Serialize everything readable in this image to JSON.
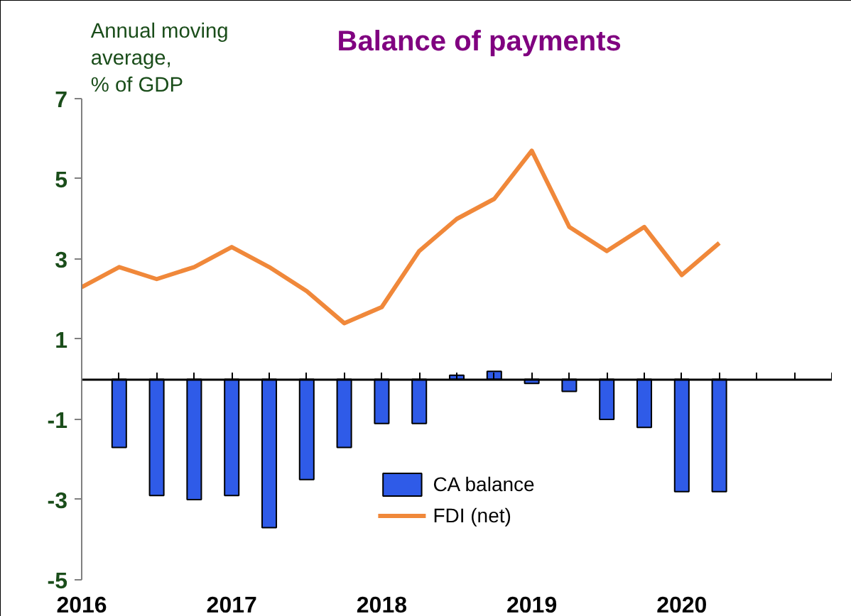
{
  "chart_data": {
    "type": "bar",
    "title": "Balance of payments",
    "ylabel": "Annual moving\naverage,\n% of GDP",
    "xlim": [
      2016,
      2021
    ],
    "xticks": [
      {
        "value": 2016,
        "label": "2016"
      },
      {
        "value": 2016.25,
        "label": null
      },
      {
        "value": 2016.5,
        "label": null
      },
      {
        "value": 2016.75,
        "label": null
      },
      {
        "value": 2017,
        "label": "2017"
      },
      {
        "value": 2017.25,
        "label": null
      },
      {
        "value": 2017.5,
        "label": null
      },
      {
        "value": 2017.75,
        "label": null
      },
      {
        "value": 2018,
        "label": "2018"
      },
      {
        "value": 2018.25,
        "label": null
      },
      {
        "value": 2018.5,
        "label": null
      },
      {
        "value": 2018.75,
        "label": null
      },
      {
        "value": 2019,
        "label": "2019"
      },
      {
        "value": 2019.25,
        "label": null
      },
      {
        "value": 2019.5,
        "label": null
      },
      {
        "value": 2019.75,
        "label": null
      },
      {
        "value": 2020,
        "label": "2020"
      },
      {
        "value": 2020.25,
        "label": null
      },
      {
        "value": 2020.5,
        "label": null
      },
      {
        "value": 2020.75,
        "label": null
      },
      {
        "value": 2021,
        "label": null
      }
    ],
    "ylim": [
      -5,
      7
    ],
    "yticks": [
      -5,
      -3,
      -1,
      1,
      3,
      5,
      7
    ],
    "series": [
      {
        "name": "CA balance",
        "color": "#2f5be8",
        "x": [
          2016.25,
          2016.5,
          2016.75,
          2017,
          2017.25,
          2017.5,
          2017.75,
          2018,
          2018.25,
          2018.5,
          2018.75,
          2019,
          2019.25,
          2019.5,
          2019.75,
          2020,
          2020.25
        ],
        "values": [
          -1.7,
          -2.9,
          -3.0,
          -2.9,
          -3.7,
          -2.5,
          -1.7,
          -1.1,
          -1.1,
          0.1,
          0.2,
          -0.1,
          -0.3,
          -1.0,
          -1.2,
          -2.8,
          -2.8
        ]
      },
      {
        "name": "FDI (net)",
        "type": "line",
        "color": "#f0883a",
        "x": [
          2016,
          2016.25,
          2016.5,
          2016.75,
          2017,
          2017.25,
          2017.5,
          2017.75,
          2018,
          2018.25,
          2018.5,
          2018.75,
          2019,
          2019.25,
          2019.5,
          2019.75,
          2020,
          2020.25
        ],
        "values": [
          2.3,
          2.8,
          2.5,
          2.8,
          3.3,
          2.8,
          2.2,
          1.4,
          1.8,
          3.2,
          4.0,
          4.5,
          5.7,
          3.8,
          3.2,
          3.8,
          2.6,
          3.4
        ]
      }
    ],
    "grid": false,
    "legend": "bottom"
  }
}
